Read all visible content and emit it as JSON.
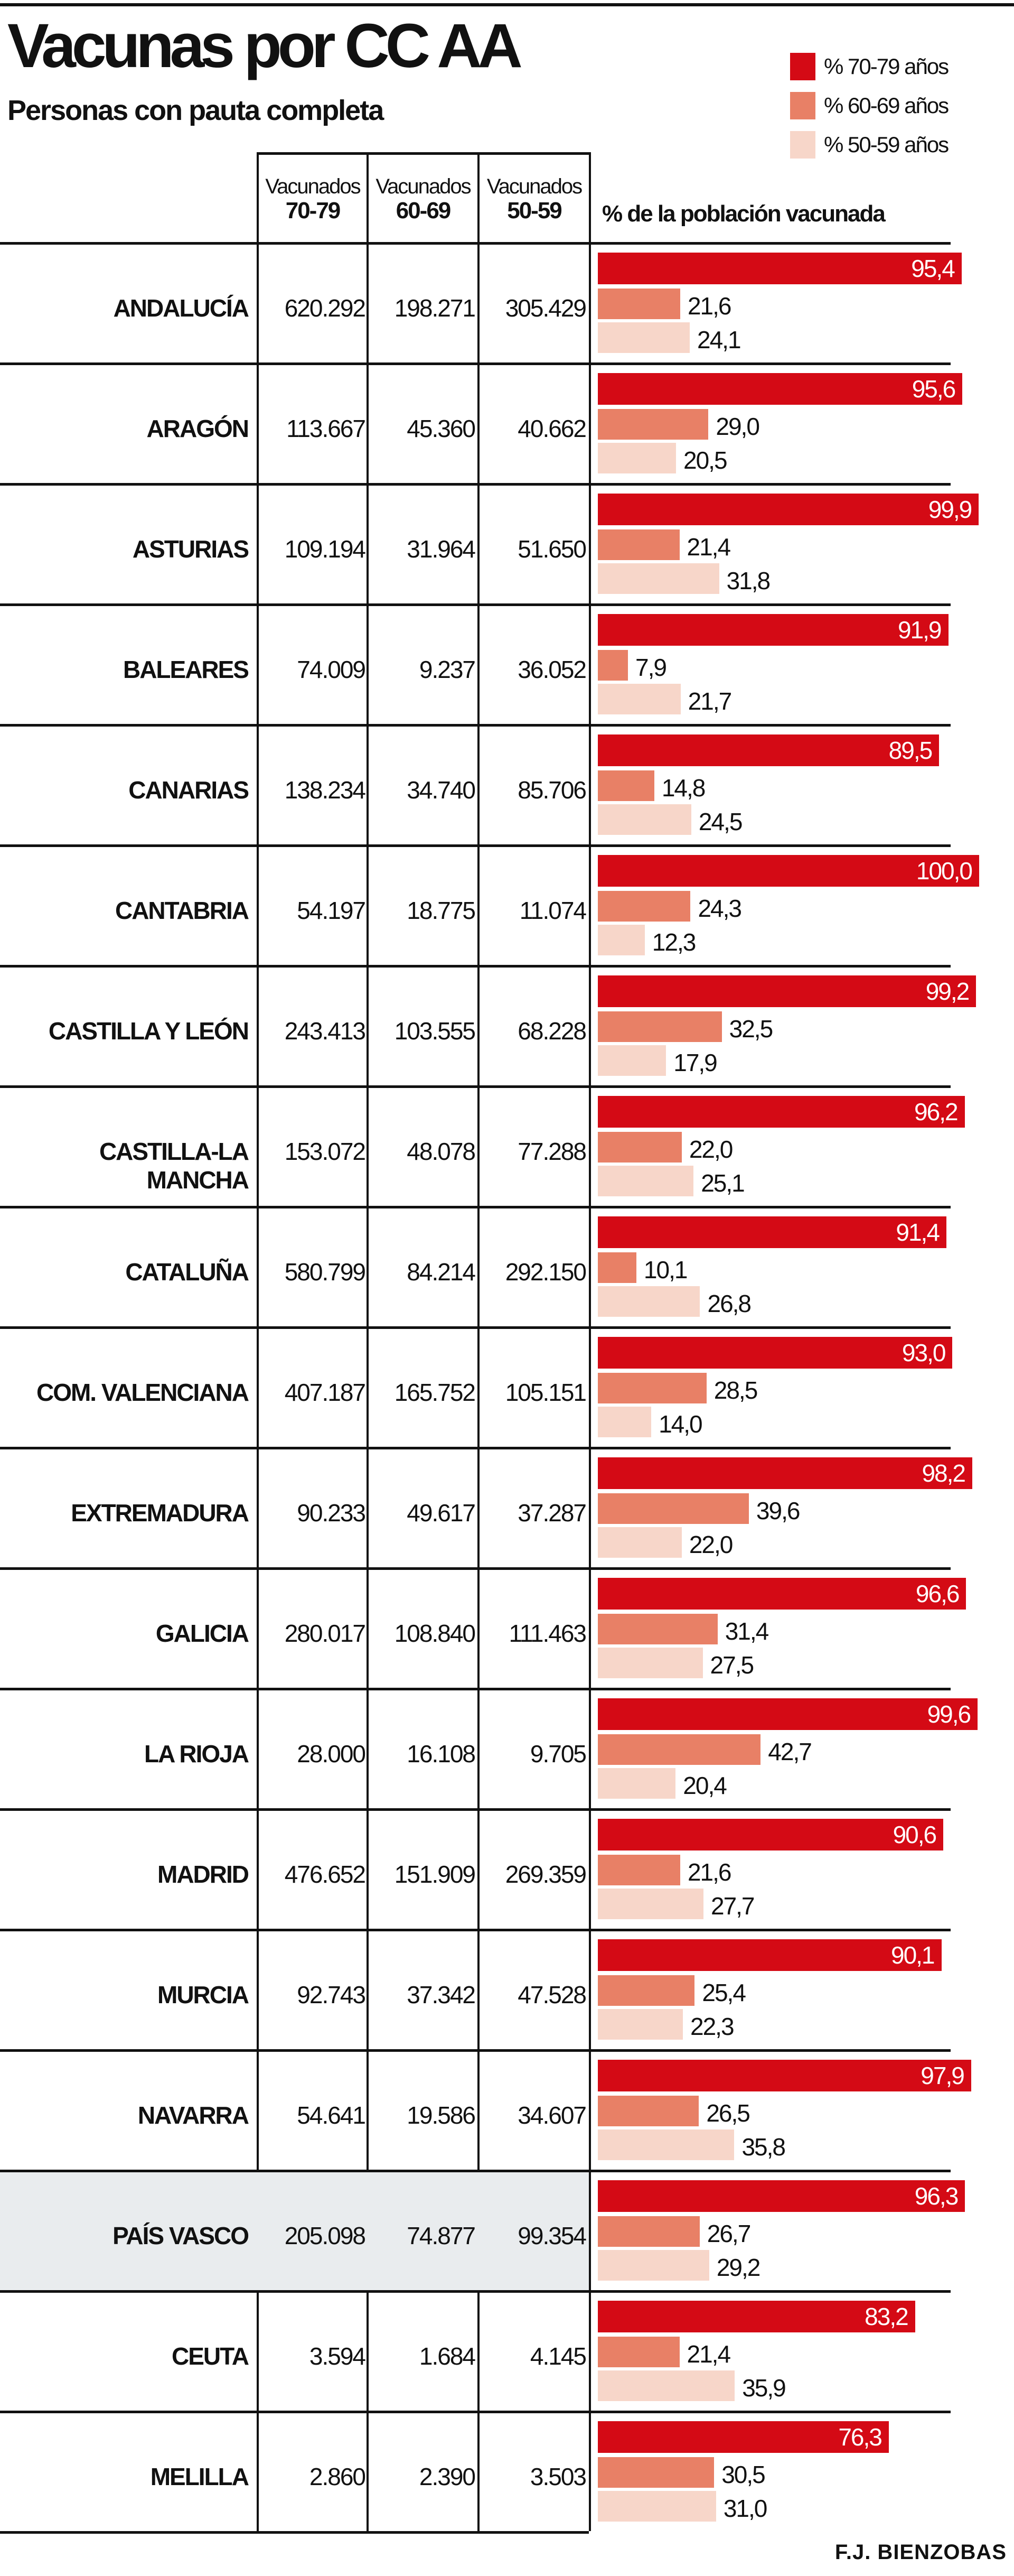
{
  "title": "Vacunas por CC AA",
  "subtitle": "Personas con pauta completa",
  "legend": [
    {
      "label": "% 70-79 años",
      "color": "#d40a15"
    },
    {
      "label": "% 60-69 años",
      "color": "#e88066"
    },
    {
      "label": "% 50-59 años",
      "color": "#f7d6c9"
    }
  ],
  "headers": {
    "col1": {
      "line1": "Vacunados",
      "line2": "70-79"
    },
    "col2": {
      "line1": "Vacunados",
      "line2": "60-69"
    },
    "col3": {
      "line1": "Vacunados",
      "line2": "50-59"
    },
    "pct": "% de la población vacunada"
  },
  "credit": "F.J. BIENZOBAS",
  "highlight_color": "#e9ecee",
  "chart_data": {
    "type": "bar",
    "title": "Vacunas por CC AA",
    "subtitle": "Personas con pauta completa",
    "xlabel": "% de la población vacunada",
    "xlim": [
      0,
      100
    ],
    "legend_position": "top-right",
    "categories": [
      "ANDALUCÍA",
      "ARAGÓN",
      "ASTURIAS",
      "BALEARES",
      "CANARIAS",
      "CANTABRIA",
      "CASTILLA Y LEÓN",
      "CASTILLA-LA MANCHA",
      "CATALUÑA",
      "COM. VALENCIANA",
      "EXTREMADURA",
      "GALICIA",
      "LA RIOJA",
      "MADRID",
      "MURCIA",
      "NAVARRA",
      "PAÍS VASCO",
      "CEUTA",
      "MELILLA"
    ],
    "highlighted": [
      "PAÍS VASCO"
    ],
    "vacunados": {
      "70-79": [
        "620.292",
        "113.667",
        "109.194",
        "74.009",
        "138.234",
        "54.197",
        "243.413",
        "153.072",
        "580.799",
        "407.187",
        "90.233",
        "280.017",
        "28.000",
        "476.652",
        "92.743",
        "54.641",
        "205.098",
        "3.594",
        "2.860"
      ],
      "60-69": [
        "198.271",
        "45.360",
        "31.964",
        "9.237",
        "34.740",
        "18.775",
        "103.555",
        "48.078",
        "84.214",
        "165.752",
        "49.617",
        "108.840",
        "16.108",
        "151.909",
        "37.342",
        "19.586",
        "74.877",
        "1.684",
        "2.390"
      ],
      "50-59": [
        "305.429",
        "40.662",
        "51.650",
        "36.052",
        "85.706",
        "11.074",
        "68.228",
        "77.288",
        "292.150",
        "105.151",
        "37.287",
        "111.463",
        "9.705",
        "269.359",
        "47.528",
        "34.607",
        "99.354",
        "4.145",
        "3.503"
      ]
    },
    "series": [
      {
        "name": "% 70-79 años",
        "values": [
          95.4,
          95.6,
          99.9,
          91.9,
          89.5,
          100.0,
          99.2,
          96.2,
          91.4,
          93.0,
          98.2,
          96.6,
          99.6,
          90.6,
          90.1,
          97.9,
          96.3,
          83.2,
          76.3
        ]
      },
      {
        "name": "% 60-69 años",
        "values": [
          21.6,
          29.0,
          21.4,
          7.9,
          14.8,
          24.3,
          32.5,
          22.0,
          10.1,
          28.5,
          39.6,
          31.4,
          42.7,
          21.6,
          25.4,
          26.5,
          26.7,
          21.4,
          30.5
        ]
      },
      {
        "name": "% 50-59 años",
        "values": [
          24.1,
          20.5,
          31.8,
          21.7,
          24.5,
          12.3,
          17.9,
          25.1,
          26.8,
          14.0,
          22.0,
          27.5,
          20.4,
          27.7,
          22.3,
          35.8,
          29.2,
          35.9,
          31.0
        ]
      }
    ]
  }
}
